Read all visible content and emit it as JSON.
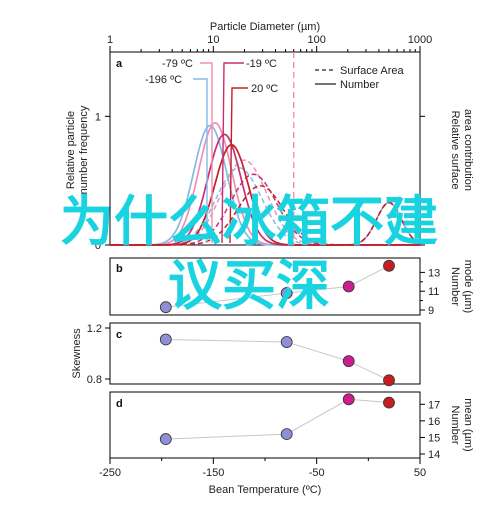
{
  "chart_data": [
    {
      "panel": "a",
      "type": "line",
      "top_axis": {
        "label": "Particle Diameter (µm)",
        "scale": "log",
        "range": [
          1,
          1000
        ],
        "ticks": [
          "1",
          "10",
          "100",
          "1000"
        ]
      },
      "ylim": [
        0,
        1.5
      ],
      "yticks": [
        "0",
        "1"
      ],
      "ylabel": "Relative particle\nnumber frequency",
      "y2label": "Relative surface\narea contribution",
      "legend": {
        "position": "top-right",
        "entries": [
          {
            "label": "Surface Area",
            "style": "dashed"
          },
          {
            "label": "Number",
            "style": "solid"
          }
        ]
      },
      "series": [
        {
          "name": "-79 ºC",
          "color": "#f08fb0",
          "peak_diameter_um": 10.4,
          "number_peak": 0.95,
          "surface_peak": 0.66
        },
        {
          "name": "-196 ºC",
          "color": "#86b9e6",
          "peak_diameter_um": 9.3,
          "number_peak": 0.93,
          "surface_peak": 0.6
        },
        {
          "name": "-19 ºC",
          "color": "#c72f72",
          "peak_diameter_um": 12.8,
          "number_peak": 0.86,
          "surface_peak": 0.55
        },
        {
          "name": "20 ºC",
          "color": "#c4202a",
          "peak_diameter_um": 15.0,
          "number_peak": 0.78,
          "surface_peak": 0.46
        }
      ],
      "reference_line_um": 60
    },
    {
      "panel": "b",
      "type": "scatter",
      "ylabel": "Number\nmode (µm)",
      "ylim": [
        9,
        14
      ],
      "yticks": [
        "9",
        "11",
        "13"
      ],
      "points": [
        {
          "x": -196,
          "y": 9.3,
          "color": "#8e8fd6"
        },
        {
          "x": -79,
          "y": 10.8,
          "color": "#8e8fd6"
        },
        {
          "x": -19,
          "y": 11.5,
          "color": "#cc1e8f"
        },
        {
          "x": 20,
          "y": 13.7,
          "color": "#c61e1e"
        }
      ]
    },
    {
      "panel": "c",
      "type": "scatter",
      "ylabel": "Skewness",
      "ylim": [
        0.8,
        1.2
      ],
      "yticks": [
        "0.8",
        "1.2"
      ],
      "points": [
        {
          "x": -196,
          "y": 1.11,
          "color": "#8e8fd6"
        },
        {
          "x": -79,
          "y": 1.09,
          "color": "#8e8fd6"
        },
        {
          "x": -19,
          "y": 0.94,
          "color": "#cc1e8f"
        },
        {
          "x": 20,
          "y": 0.79,
          "color": "#c61e1e"
        }
      ]
    },
    {
      "panel": "d",
      "type": "scatter",
      "ylabel": "Number\nmean (µm)",
      "ylim": [
        14,
        17.5
      ],
      "yticks": [
        "14",
        "15",
        "16",
        "17"
      ],
      "points": [
        {
          "x": -196,
          "y": 14.9,
          "color": "#8e8fd6"
        },
        {
          "x": -79,
          "y": 15.2,
          "color": "#8e8fd6"
        },
        {
          "x": -19,
          "y": 17.3,
          "color": "#cc1e8f"
        },
        {
          "x": 20,
          "y": 17.1,
          "color": "#c61e1e"
        }
      ],
      "xlabel": "Bean Temperature (ºC)",
      "xlim": [
        -250,
        50
      ],
      "xticks": [
        "-250",
        "-150",
        "-50",
        "50"
      ]
    }
  ],
  "overlay_text": [
    "为什么冰箱不建",
    "议买深"
  ]
}
